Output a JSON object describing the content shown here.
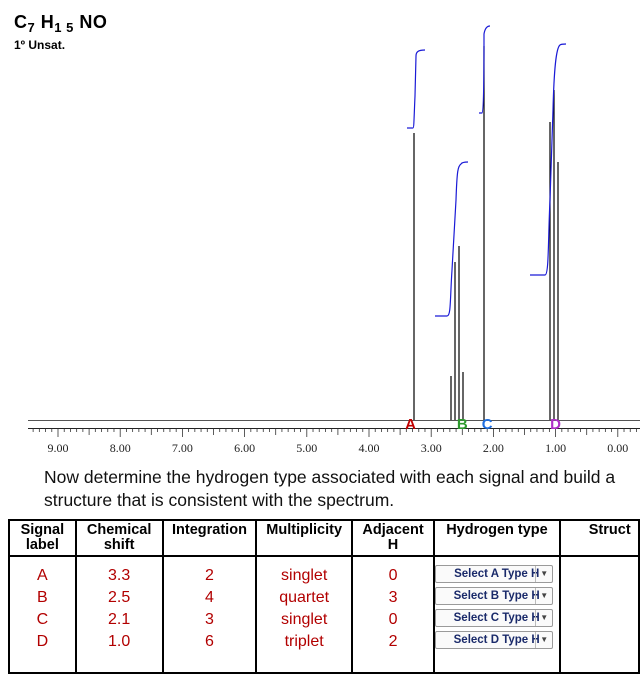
{
  "formula": {
    "c": "C",
    "c_n": "7",
    "h": "H",
    "h_n": "1 5",
    "rest": "NO"
  },
  "unsaturation": "1º Unsat.",
  "spectrum": {
    "axis_ticks": [
      "9.00",
      "8.00",
      "7.00",
      "6.00",
      "5.00",
      "4.00",
      "3.00",
      "2.00",
      "1.00",
      "0.00"
    ],
    "peak_labels": [
      {
        "label": "A",
        "ppm": 3.3,
        "color": "#c00000"
      },
      {
        "label": "B",
        "ppm": 2.5,
        "color": "#2e9a2e"
      },
      {
        "label": "C",
        "ppm": 2.1,
        "color": "#1e6ee0"
      },
      {
        "label": "D",
        "ppm": 1.0,
        "color": "#b030c8"
      }
    ]
  },
  "prompt": "Now determine the hydrogen type associated with each signal and build a structure that is consistent with the spectrum.",
  "table": {
    "headers": {
      "signal": "Signal label",
      "shift": "Chemical shift",
      "integration": "Integration",
      "multiplicity": "Multiplicity",
      "adjacent": "Adjacent H",
      "htype": "Hydrogen type",
      "structure": "Struct"
    },
    "rows": [
      {
        "signal": "A",
        "shift": "3.3",
        "integration": "2",
        "multiplicity": "singlet",
        "adjacent": "0",
        "select": "Select A Type H"
      },
      {
        "signal": "B",
        "shift": "2.5",
        "integration": "4",
        "multiplicity": "quartet",
        "adjacent": "3",
        "select": "Select B Type H"
      },
      {
        "signal": "C",
        "shift": "2.1",
        "integration": "3",
        "multiplicity": "singlet",
        "adjacent": "0",
        "select": "Select C Type H"
      },
      {
        "signal": "D",
        "shift": "1.0",
        "integration": "6",
        "multiplicity": "triplet",
        "adjacent": "2",
        "select": "Select D Type H"
      }
    ]
  }
}
